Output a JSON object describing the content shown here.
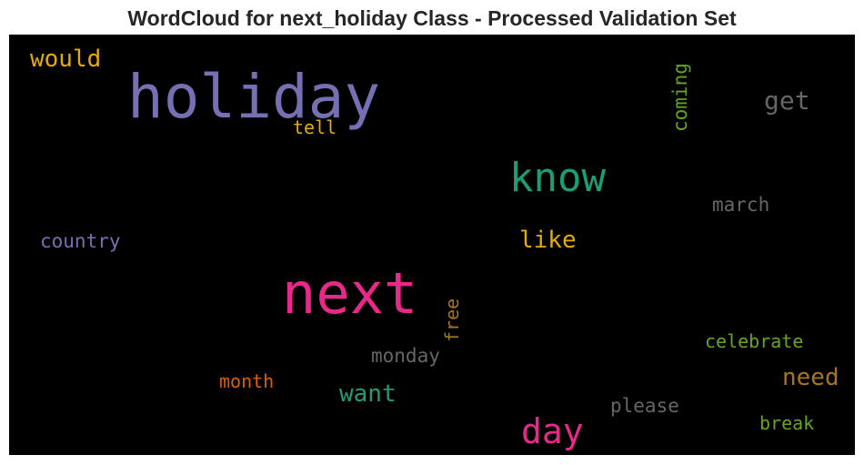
{
  "chart_data": {
    "type": "wordcloud",
    "title": "WordCloud for next_holiday Class - Processed Validation Set",
    "background": "#000000",
    "words": [
      {
        "text": "holiday",
        "weight": 100,
        "color": "#7570b3",
        "orientation": "horizontal"
      },
      {
        "text": "next",
        "weight": 92,
        "color": "#e7298a",
        "orientation": "horizontal"
      },
      {
        "text": "know",
        "weight": 62,
        "color": "#1b9e77",
        "orientation": "horizontal"
      },
      {
        "text": "day",
        "weight": 55,
        "color": "#e7298a",
        "orientation": "horizontal"
      },
      {
        "text": "get",
        "weight": 40,
        "color": "#666666",
        "orientation": "horizontal"
      },
      {
        "text": "would",
        "weight": 38,
        "color": "#e6ab02",
        "orientation": "horizontal"
      },
      {
        "text": "want",
        "weight": 38,
        "color": "#1b9e77",
        "orientation": "horizontal"
      },
      {
        "text": "like",
        "weight": 37,
        "color": "#e6ab02",
        "orientation": "horizontal"
      },
      {
        "text": "need",
        "weight": 37,
        "color": "#a6761d",
        "orientation": "horizontal"
      },
      {
        "text": "coming",
        "weight": 30,
        "color": "#66a61e",
        "orientation": "vertical"
      },
      {
        "text": "country",
        "weight": 30,
        "color": "#7570b3",
        "orientation": "horizontal"
      },
      {
        "text": "march",
        "weight": 30,
        "color": "#666666",
        "orientation": "horizontal"
      },
      {
        "text": "monday",
        "weight": 30,
        "color": "#666666",
        "orientation": "horizontal"
      },
      {
        "text": "please",
        "weight": 30,
        "color": "#666666",
        "orientation": "horizontal"
      },
      {
        "text": "free",
        "weight": 28,
        "color": "#a6761d",
        "orientation": "vertical"
      },
      {
        "text": "celebrate",
        "weight": 28,
        "color": "#66a61e",
        "orientation": "horizontal"
      },
      {
        "text": "month",
        "weight": 27,
        "color": "#d95f02",
        "orientation": "horizontal"
      },
      {
        "text": "break",
        "weight": 27,
        "color": "#66a61e",
        "orientation": "horizontal"
      },
      {
        "text": "tell",
        "weight": 27,
        "color": "#e6ab02",
        "orientation": "horizontal"
      }
    ]
  }
}
